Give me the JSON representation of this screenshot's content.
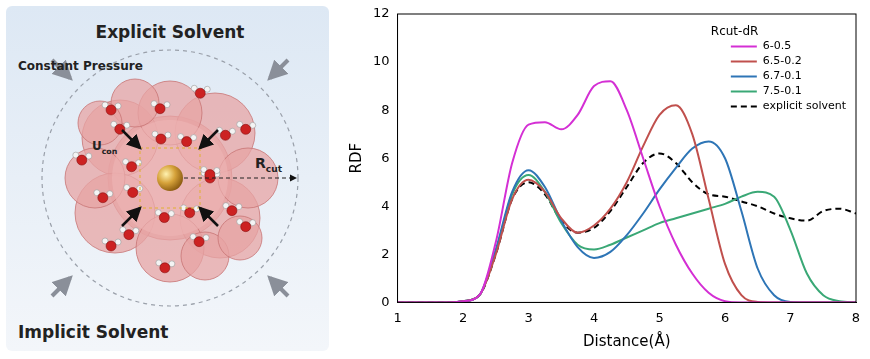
{
  "diagram": {
    "title_top": "Explicit Solvent",
    "pressure_label": "Constant Pressure",
    "energy_label": {
      "base": "U",
      "sub": "con"
    },
    "radius_label": {
      "base": "R",
      "sub": "cut"
    },
    "title_bottom": "Implicit Solvent"
  },
  "chart_data": {
    "type": "line",
    "x_label": "Distance(Å)",
    "y_label": "RDF",
    "legend_title": "Rcut-dR",
    "legend": "upper right",
    "grid": false,
    "xlim": [
      1,
      8
    ],
    "xticks": [
      1,
      2,
      3,
      4,
      5,
      6,
      7,
      8
    ],
    "ylim": [
      0,
      12
    ],
    "yticks": [
      0,
      2,
      4,
      6,
      8,
      10,
      12
    ],
    "x": [
      1,
      1.25,
      1.5,
      1.75,
      2,
      2.25,
      2.5,
      2.75,
      3,
      3.25,
      3.5,
      3.75,
      4,
      4.25,
      4.5,
      4.75,
      5,
      5.25,
      5.5,
      5.75,
      6,
      6.25,
      6.5,
      6.75,
      7,
      7.25,
      7.5,
      7.75,
      8
    ],
    "series": [
      {
        "name": "6-0.5",
        "color": "#d42fd4",
        "line_style": "solid",
        "marker": "none",
        "values": [
          0,
          0,
          0,
          0,
          0.05,
          0.3,
          2.5,
          5.8,
          7.4,
          7.5,
          7.2,
          7.8,
          9.0,
          9.2,
          8.0,
          6.0,
          4.0,
          2.4,
          1.2,
          0.4,
          0.05,
          0,
          0,
          0,
          0,
          0,
          0,
          0,
          0
        ]
      },
      {
        "name": "6.5-0.2",
        "color": "#c0504d",
        "line_style": "solid",
        "marker": "none",
        "values": [
          0,
          0,
          0,
          0,
          0.05,
          0.3,
          2.0,
          4.3,
          5.1,
          4.6,
          3.5,
          2.9,
          3.2,
          3.9,
          5.0,
          6.5,
          7.8,
          8.2,
          7.0,
          4.3,
          1.6,
          0.3,
          0.02,
          0,
          0,
          0,
          0,
          0,
          0
        ]
      },
      {
        "name": "6.7-0.1",
        "color": "#2e75b6",
        "line_style": "solid",
        "marker": "none",
        "values": [
          0,
          0,
          0,
          0,
          0.05,
          0.3,
          2.2,
          4.6,
          5.5,
          4.8,
          3.4,
          2.3,
          1.85,
          2.1,
          2.8,
          3.7,
          4.7,
          5.6,
          6.4,
          6.7,
          6.0,
          3.8,
          1.4,
          0.3,
          0.02,
          0,
          0,
          0,
          0
        ]
      },
      {
        "name": "7.5-0.1",
        "color": "#3aa876",
        "line_style": "solid",
        "marker": "none",
        "values": [
          0,
          0,
          0,
          0,
          0.05,
          0.3,
          2.1,
          4.5,
          5.3,
          4.6,
          3.3,
          2.4,
          2.2,
          2.4,
          2.7,
          3.0,
          3.3,
          3.5,
          3.7,
          3.9,
          4.1,
          4.4,
          4.6,
          4.4,
          3.0,
          1.2,
          0.3,
          0.05,
          0
        ]
      },
      {
        "name": "explicit solvent",
        "color": "#000000",
        "line_style": "dashed",
        "marker": "none",
        "values": [
          0,
          0,
          0,
          0,
          0.05,
          0.3,
          2.0,
          4.3,
          5.0,
          4.5,
          3.4,
          2.9,
          3.1,
          3.8,
          4.8,
          5.8,
          6.2,
          5.8,
          5.0,
          4.5,
          4.4,
          4.2,
          4.0,
          3.7,
          3.5,
          3.4,
          3.8,
          3.9,
          3.7
        ]
      }
    ]
  }
}
